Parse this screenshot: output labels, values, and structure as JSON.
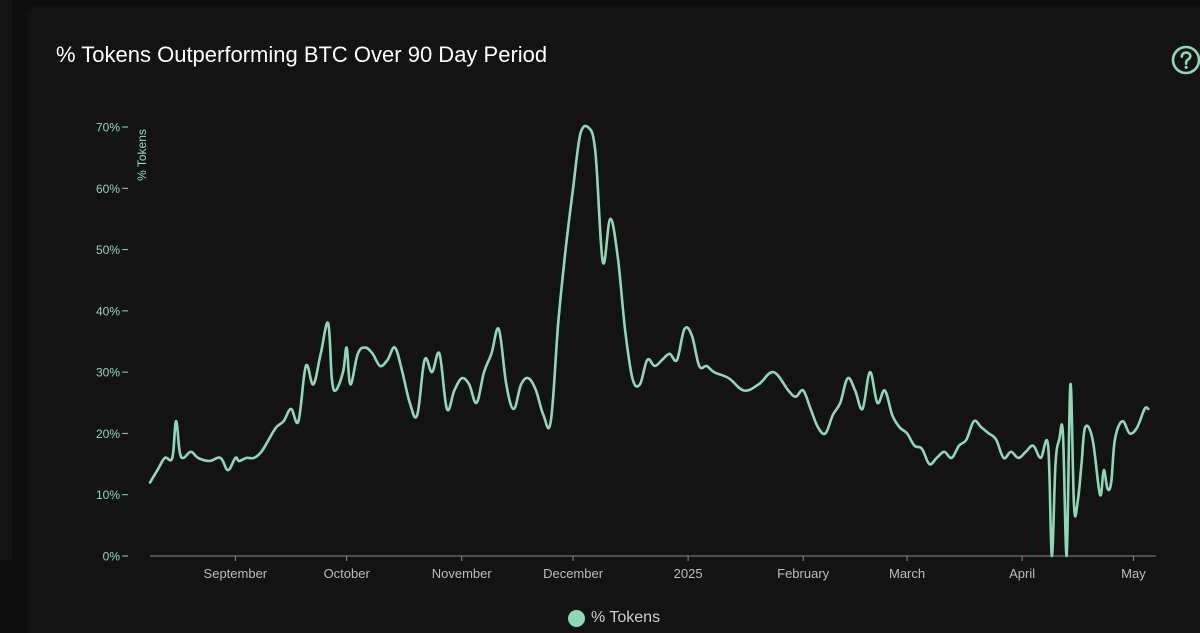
{
  "card": {
    "title": "% Tokens Outperforming BTC Over 90 Day Period",
    "help_icon": "question-circle-icon"
  },
  "colors": {
    "series": "#8ed8b8",
    "tick_label": "#8ed8b8",
    "x_tick_label": "#bcbcbc",
    "background": "#131313"
  },
  "chart_data": {
    "type": "line",
    "title": "% Tokens Outperforming BTC Over 90 Day Period",
    "ylabel": "% Tokens",
    "xlabel": "",
    "ylim": [
      0,
      70
    ],
    "xlim": [
      "2024-08-09",
      "2025-05-06"
    ],
    "grid": false,
    "legend_position": "bottom-center",
    "y_ticks": [
      0,
      10,
      20,
      30,
      40,
      50,
      60,
      70
    ],
    "y_tick_labels": [
      "0%",
      "10%",
      "20%",
      "30%",
      "40%",
      "50%",
      "60%",
      "70%"
    ],
    "x_ticks": [
      "2024-09-01",
      "2024-10-01",
      "2024-11-01",
      "2024-12-01",
      "2025-01-01",
      "2025-02-01",
      "2025-03-01",
      "2025-04-01",
      "2025-05-01"
    ],
    "x_tick_labels": [
      "September",
      "October",
      "November",
      "December",
      "2025",
      "February",
      "March",
      "April",
      "May"
    ],
    "series": [
      {
        "name": "% Tokens",
        "x": [
          "2024-08-09",
          "2024-08-11",
          "2024-08-13",
          "2024-08-15",
          "2024-08-16",
          "2024-08-17",
          "2024-08-18",
          "2024-08-20",
          "2024-08-22",
          "2024-08-25",
          "2024-08-28",
          "2024-08-30",
          "2024-09-01",
          "2024-09-02",
          "2024-09-04",
          "2024-09-06",
          "2024-09-08",
          "2024-09-10",
          "2024-09-12",
          "2024-09-14",
          "2024-09-16",
          "2024-09-18",
          "2024-09-20",
          "2024-09-22",
          "2024-09-24",
          "2024-09-26",
          "2024-09-27",
          "2024-09-28",
          "2024-09-30",
          "2024-10-01",
          "2024-10-02",
          "2024-10-04",
          "2024-10-06",
          "2024-10-08",
          "2024-10-10",
          "2024-10-12",
          "2024-10-14",
          "2024-10-16",
          "2024-10-18",
          "2024-10-20",
          "2024-10-22",
          "2024-10-24",
          "2024-10-26",
          "2024-10-28",
          "2024-10-30",
          "2024-11-01",
          "2024-11-03",
          "2024-11-05",
          "2024-11-07",
          "2024-11-09",
          "2024-11-11",
          "2024-11-13",
          "2024-11-15",
          "2024-11-17",
          "2024-11-19",
          "2024-11-21",
          "2024-11-23",
          "2024-11-25",
          "2024-11-27",
          "2024-11-29",
          "2024-12-01",
          "2024-12-03",
          "2024-12-05",
          "2024-12-07",
          "2024-12-09",
          "2024-12-11",
          "2024-12-13",
          "2024-12-15",
          "2024-12-17",
          "2024-12-19",
          "2024-12-21",
          "2024-12-23",
          "2024-12-25",
          "2024-12-27",
          "2024-12-29",
          "2024-12-31",
          "2025-01-02",
          "2025-01-04",
          "2025-01-06",
          "2025-01-08",
          "2025-01-12",
          "2025-01-16",
          "2025-01-20",
          "2025-01-24",
          "2025-01-28",
          "2025-01-30",
          "2025-02-01",
          "2025-02-03",
          "2025-02-05",
          "2025-02-07",
          "2025-02-09",
          "2025-02-11",
          "2025-02-13",
          "2025-02-15",
          "2025-02-17",
          "2025-02-19",
          "2025-02-21",
          "2025-02-23",
          "2025-02-25",
          "2025-02-27",
          "2025-03-01",
          "2025-03-03",
          "2025-03-05",
          "2025-03-07",
          "2025-03-09",
          "2025-03-11",
          "2025-03-13",
          "2025-03-15",
          "2025-03-17",
          "2025-03-19",
          "2025-03-21",
          "2025-03-23",
          "2025-03-25",
          "2025-03-27",
          "2025-03-29",
          "2025-03-31",
          "2025-04-02",
          "2025-04-04",
          "2025-04-06",
          "2025-04-08",
          "2025-04-09",
          "2025-04-10",
          "2025-04-11",
          "2025-04-12",
          "2025-04-13",
          "2025-04-14",
          "2025-04-15",
          "2025-04-16",
          "2025-04-17",
          "2025-04-18",
          "2025-04-20",
          "2025-04-22",
          "2025-04-23",
          "2025-04-24",
          "2025-04-25",
          "2025-04-26",
          "2025-04-28",
          "2025-04-30",
          "2025-05-02",
          "2025-05-04",
          "2025-05-05"
        ],
        "values": [
          12,
          14,
          16,
          16,
          22,
          17,
          16,
          17,
          16,
          15.5,
          16,
          14,
          16,
          15.5,
          16,
          16,
          17,
          19,
          21,
          22,
          24,
          22,
          31,
          28,
          33,
          38,
          29,
          27,
          30,
          34,
          28,
          33,
          34,
          33,
          31,
          32,
          34,
          30,
          25,
          23,
          32,
          30,
          33,
          24,
          27,
          29,
          28,
          25,
          30,
          33,
          37,
          28,
          24,
          28,
          29,
          27,
          23,
          22,
          38,
          50,
          60,
          69,
          70,
          66,
          48,
          55,
          49,
          37,
          29,
          28,
          32,
          31,
          32,
          33,
          32,
          37,
          36,
          31,
          31,
          30,
          29,
          27,
          28,
          30,
          27,
          26,
          27,
          24,
          21,
          20,
          23,
          25,
          29,
          27,
          24,
          30,
          25,
          27,
          23,
          21,
          20,
          18,
          17.5,
          15,
          16,
          17,
          16,
          18,
          19,
          22,
          21,
          20,
          19,
          16,
          17,
          16,
          17,
          18,
          16,
          18,
          0,
          15,
          19,
          20,
          0,
          28,
          8,
          9,
          15,
          21,
          19,
          10,
          14,
          11,
          12,
          19,
          22,
          20,
          21,
          24,
          24
        ]
      }
    ]
  },
  "legend": {
    "items": [
      {
        "label": "% Tokens",
        "color": "#8ed8b8"
      }
    ]
  }
}
